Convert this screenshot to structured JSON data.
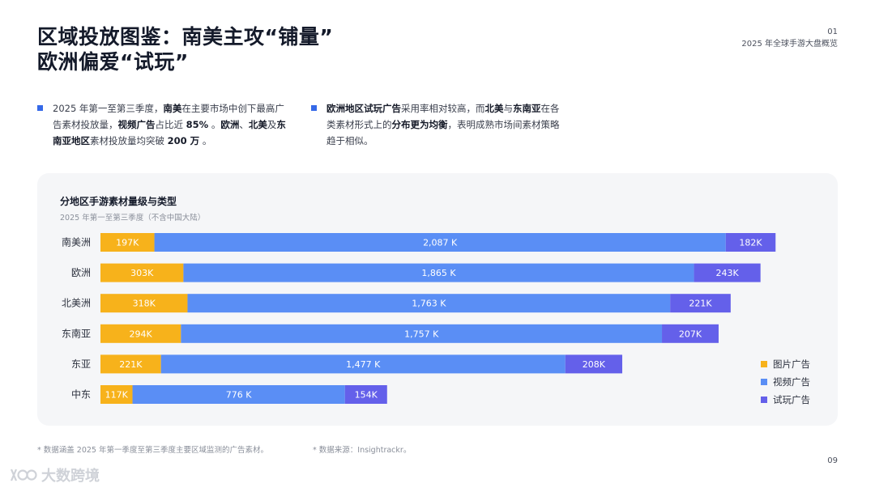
{
  "header": {
    "title_line1": "区域投放图鉴：南美主攻“铺量”",
    "title_line2": "欧洲偏爱“试玩”",
    "section_no": "01",
    "section_name": "2025 年全球手游大盘概览"
  },
  "bullets": [
    {
      "segments": [
        {
          "t": "2025 年第一至第三季度，",
          "b": false
        },
        {
          "t": "南美",
          "b": true
        },
        {
          "t": "在主要市场中创下最高广告素材投放量，",
          "b": false
        },
        {
          "t": "视频广告",
          "b": true
        },
        {
          "t": "占比近 ",
          "b": false
        },
        {
          "t": "85%",
          "b": true
        },
        {
          "t": " 。",
          "b": false
        },
        {
          "t": "欧洲",
          "b": true
        },
        {
          "t": "、",
          "b": false
        },
        {
          "t": "北美",
          "b": true
        },
        {
          "t": "及",
          "b": false
        },
        {
          "t": "东南亚地区",
          "b": true
        },
        {
          "t": "素材投放量均突破 ",
          "b": false
        },
        {
          "t": "200 万",
          "b": true
        },
        {
          "t": " 。",
          "b": false
        }
      ]
    },
    {
      "segments": [
        {
          "t": "欧洲地区试玩广告",
          "b": true
        },
        {
          "t": "采用率相对较高，而",
          "b": false
        },
        {
          "t": "北美",
          "b": true
        },
        {
          "t": "与",
          "b": false
        },
        {
          "t": "东南亚",
          "b": true
        },
        {
          "t": "在各类素材形式上的",
          "b": false
        },
        {
          "t": "分布更为均衡",
          "b": true
        },
        {
          "t": "，表明成熟市场间素材策略趋于相似。",
          "b": false
        }
      ]
    }
  ],
  "chart_data": {
    "type": "bar",
    "orientation": "horizontal",
    "stacked": true,
    "title": "分地区手游素材量级与类型",
    "subtitle": "2025 年第一至第三季度（不含中国大陆）",
    "categories": [
      "南美洲",
      "欧洲",
      "北美洲",
      "东南亚",
      "东亚",
      "中东"
    ],
    "series": [
      {
        "name": "图片广告",
        "color": "#f7b21b",
        "values": [
          197,
          303,
          318,
          294,
          221,
          117
        ],
        "labels": [
          "197K",
          "303K",
          "318K",
          "294K",
          "221K",
          "117K"
        ]
      },
      {
        "name": "视频广告",
        "color": "#5a8ef5",
        "values": [
          2087,
          1865,
          1763,
          1757,
          1477,
          776
        ],
        "labels": [
          "2,087 K",
          "1,865 K",
          "1,763 K",
          "1,757 K",
          "1,477 K",
          "776 K"
        ]
      },
      {
        "name": "试玩广告",
        "color": "#6460ea",
        "values": [
          182,
          243,
          221,
          207,
          208,
          154
        ],
        "labels": [
          "182K",
          "243K",
          "221K",
          "207K",
          "208K",
          "154K"
        ]
      }
    ],
    "unit": "K",
    "legend_position": "bottom-right",
    "grid": false
  },
  "footnotes": {
    "scope": "* 数据涵盖 2025 年第一季度至第三季度主要区域监测的广告素材。",
    "source": "* 数据来源：Insightrackr。"
  },
  "page_number": "09",
  "watermark": "大数跨境"
}
